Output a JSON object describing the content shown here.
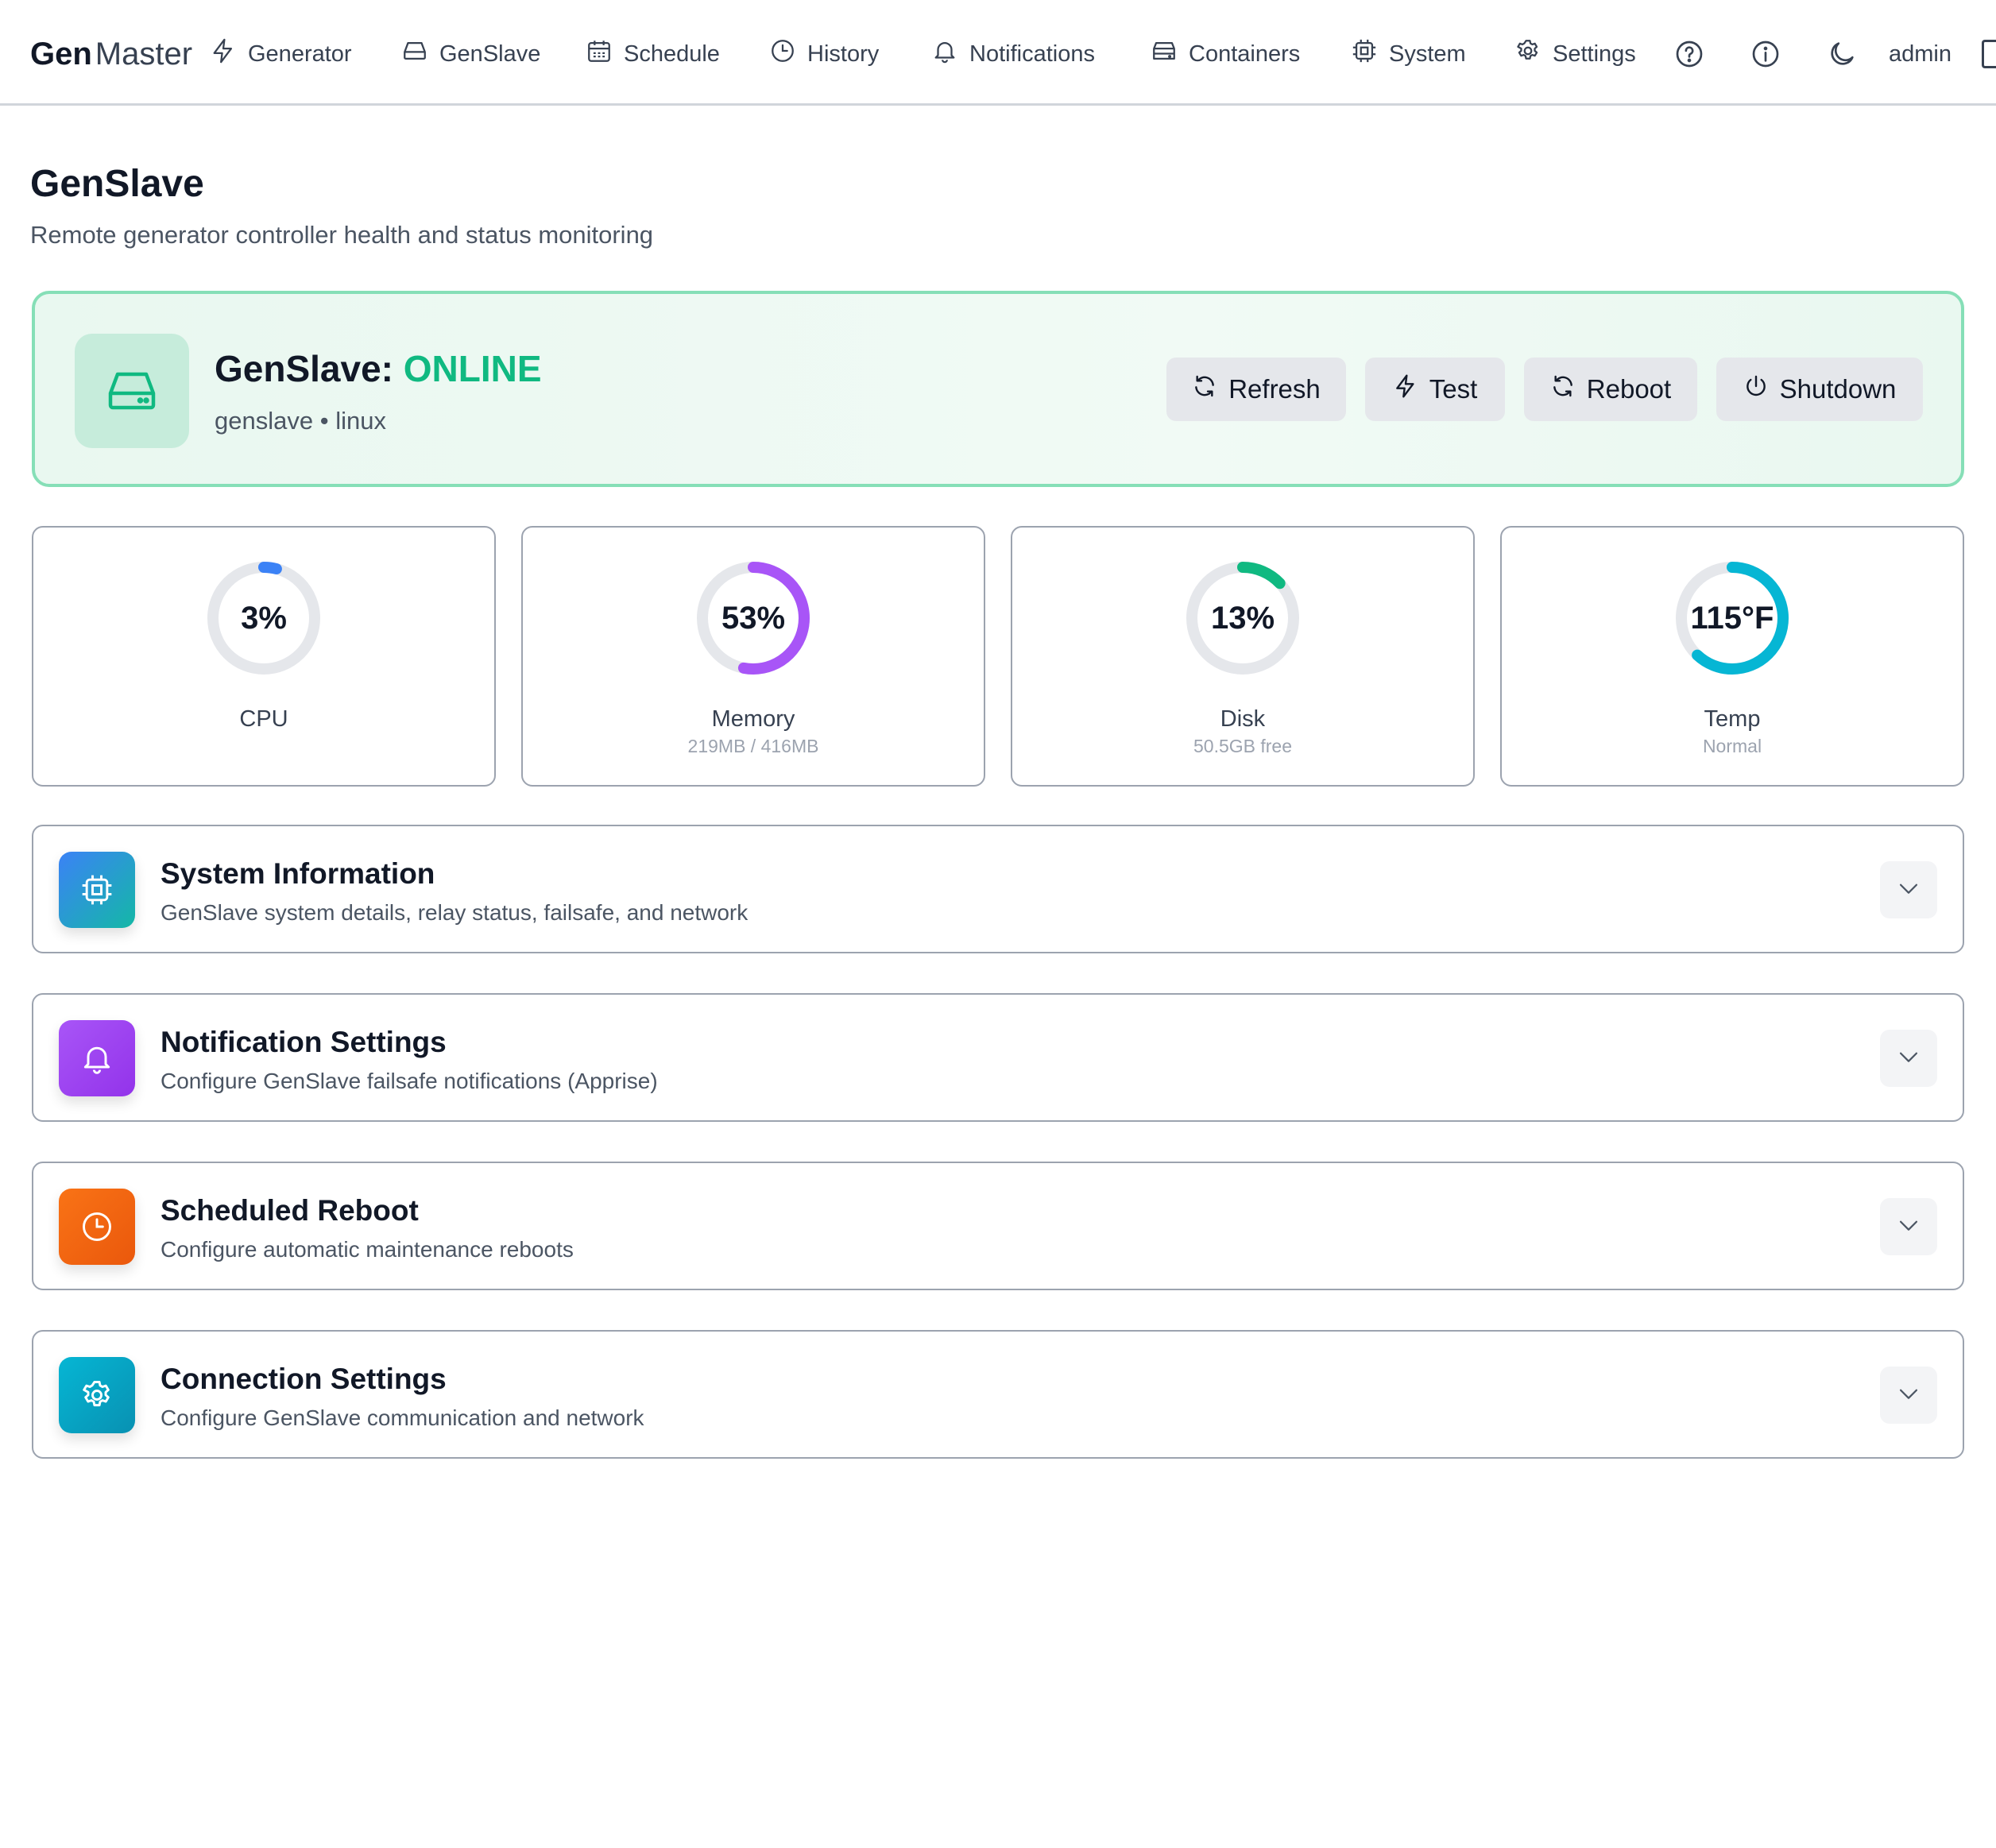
{
  "nav": {
    "brand_bold": "Gen",
    "brand_light": "Master",
    "items": [
      {
        "label": "Generator",
        "icon": "bolt-icon"
      },
      {
        "label": "GenSlave",
        "icon": "drive-icon"
      },
      {
        "label": "Schedule",
        "icon": "calendar-icon"
      },
      {
        "label": "History",
        "icon": "clock-icon"
      },
      {
        "label": "Notifications",
        "icon": "bell-icon"
      },
      {
        "label": "Containers",
        "icon": "server-icon"
      },
      {
        "label": "System",
        "icon": "chip-icon"
      },
      {
        "label": "Settings",
        "icon": "gear-icon"
      }
    ],
    "help_icon": "help-icon",
    "info_icon": "info-icon",
    "theme_icon": "moon-icon",
    "user": "admin",
    "logout_icon": "logout-icon"
  },
  "page": {
    "title": "GenSlave",
    "subtitle": "Remote generator controller health and status monitoring"
  },
  "status": {
    "name_label": "GenSlave:",
    "state": "ONLINE",
    "state_color": "#10b981",
    "host": "genslave",
    "separator": "•",
    "os": "linux",
    "icon": "drive-icon",
    "buttons": [
      {
        "label": "Refresh",
        "icon": "refresh-icon"
      },
      {
        "label": "Test",
        "icon": "bolt-icon"
      },
      {
        "label": "Reboot",
        "icon": "refresh-icon"
      },
      {
        "label": "Shutdown",
        "icon": "power-icon"
      }
    ]
  },
  "metrics": [
    {
      "value_text": "3%",
      "label": "CPU",
      "sub": "",
      "fraction": 0.03,
      "color": "#3b82f6"
    },
    {
      "value_text": "53%",
      "label": "Memory",
      "sub": "219MB / 416MB",
      "fraction": 0.53,
      "color": "#a855f7"
    },
    {
      "value_text": "13%",
      "label": "Disk",
      "sub": "50.5GB free",
      "fraction": 0.13,
      "color": "#10b981"
    },
    {
      "value_text": "115°F",
      "label": "Temp",
      "sub": "Normal",
      "fraction": 0.62,
      "color": "#06b6d4"
    }
  ],
  "sections": [
    {
      "title": "System Information",
      "desc": "GenSlave system details, relay status, failsafe, and network",
      "icon": "chip-icon",
      "color": "#3b82f6"
    },
    {
      "title": "Notification Settings",
      "desc": "Configure GenSlave failsafe notifications (Apprise)",
      "icon": "bell-icon",
      "color": "#a855f7"
    },
    {
      "title": "Scheduled Reboot",
      "desc": "Configure automatic maintenance reboots",
      "icon": "clock-icon",
      "color": "#f97316"
    },
    {
      "title": "Connection Settings",
      "desc": "Configure GenSlave communication and network",
      "icon": "gear-icon",
      "color": "#06b6d4"
    }
  ]
}
